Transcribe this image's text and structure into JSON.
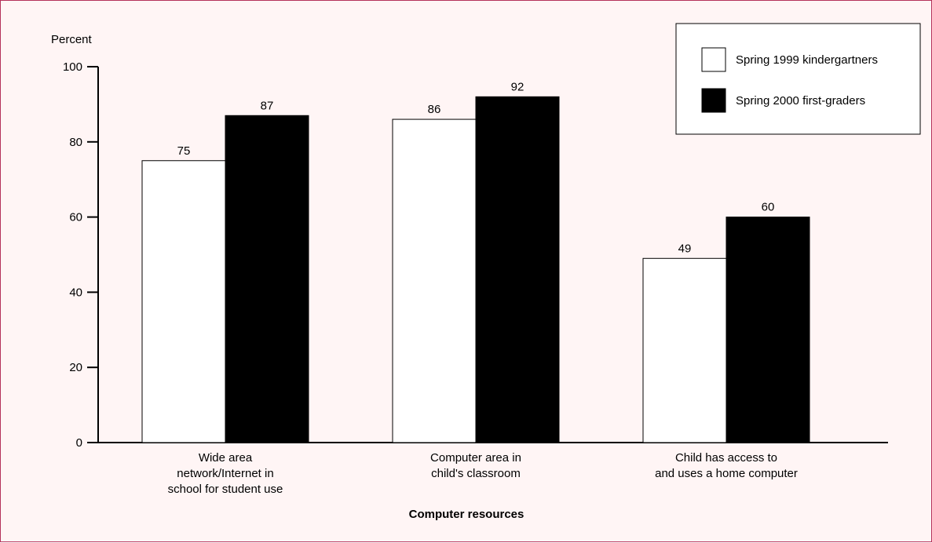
{
  "chart_data": {
    "type": "bar",
    "ylabel": "Percent",
    "xlabel": "Computer resources",
    "ylim": [
      0,
      100
    ],
    "yticks": [
      0,
      20,
      40,
      60,
      80,
      100
    ],
    "categories": [
      [
        "Wide area",
        "network/Internet in",
        "school for student use"
      ],
      [
        "Computer area in",
        "child's classroom"
      ],
      [
        "Child has access to",
        "and uses a home computer"
      ]
    ],
    "series": [
      {
        "name": "Spring 1999 kindergartners",
        "values": [
          75,
          86,
          49
        ],
        "color": "#ffffff"
      },
      {
        "name": "Spring 2000 first-graders",
        "values": [
          87,
          92,
          60
        ],
        "color": "#000000"
      }
    ],
    "legend_position": "top-right",
    "grid": false
  },
  "colors": {
    "frame_border": "#b5325a",
    "background": "#fff5f5"
  }
}
